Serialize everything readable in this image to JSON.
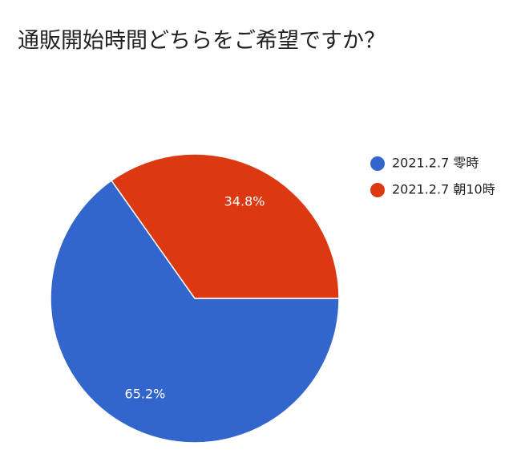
{
  "chart_data": {
    "type": "pie",
    "title": "通販開始時間どちらをご希望ですか？",
    "categories": [
      "2021.2.7 零時",
      "2021.2.7 朝10時"
    ],
    "values": [
      65.2,
      34.8
    ],
    "value_labels": [
      "65.2%",
      "34.8%"
    ],
    "colors": [
      "#3366cc",
      "#dc3912"
    ],
    "legend": "right"
  }
}
